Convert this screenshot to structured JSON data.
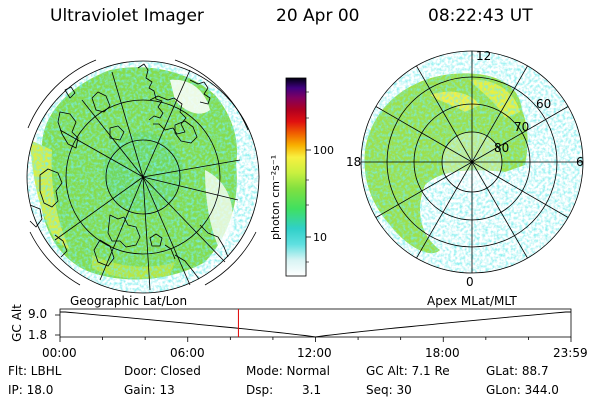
{
  "header": {
    "instrument": "Ultraviolet Imager",
    "date": "20 Apr 00",
    "time": "08:22:43 UT"
  },
  "colorbar": {
    "unit_label": "photon cm⁻²s⁻¹",
    "ticks": [
      "100",
      "10"
    ]
  },
  "geo_map": {
    "caption": "Geographic Lat/Lon"
  },
  "polar_map": {
    "caption": "Apex MLat/MLT",
    "mlt_labels": {
      "top": "12",
      "left": "18",
      "right": "6",
      "bottom": "0"
    },
    "lat_labels": [
      "60",
      "70",
      "80"
    ]
  },
  "timeline": {
    "ylabel": "GC Alt",
    "y_ticks": [
      "9.0",
      "1.8"
    ],
    "x_ticks": [
      "00:00",
      "06:00",
      "12:00",
      "18:00",
      "23:59"
    ],
    "current_time_hours": 8.38,
    "perigee_time_hours": 12.0,
    "ymin": 1.8,
    "ymax": 9.0,
    "marker_color": "#e00000"
  },
  "status": {
    "filter": "Flt: LBHL",
    "ip": "IP: 18.0",
    "door": "Door: Closed",
    "gain": "Gain: 13",
    "mode": "Mode: Normal",
    "dsp_label": "Dsp:",
    "dsp_value": "3.1",
    "gc_alt": "GC Alt: 7.1 Re",
    "seq": "Seq: 30",
    "glat": "GLat: 88.7",
    "glon": "GLon: 344.0"
  }
}
